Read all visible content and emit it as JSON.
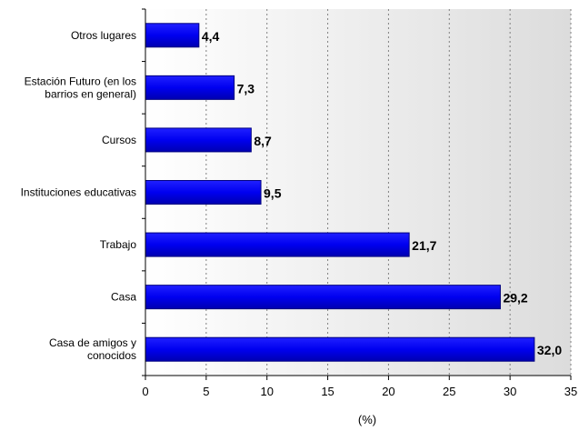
{
  "chart_data": {
    "type": "bar",
    "orientation": "horizontal",
    "categories": [
      "Otros lugares",
      "Estación Futuro (en los barrios en general)",
      "Cursos",
      "Instituciones educativas",
      "Trabajo",
      "Casa",
      "Casa de amigos y conocidos"
    ],
    "category_lines": [
      [
        "Otros lugares"
      ],
      [
        "Estación Futuro (en los",
        "barrios en general)"
      ],
      [
        "Cursos"
      ],
      [
        "Instituciones educativas"
      ],
      [
        "Trabajo"
      ],
      [
        "Casa"
      ],
      [
        "Casa de amigos y",
        "conocidos"
      ]
    ],
    "values": [
      4.4,
      7.3,
      8.7,
      9.5,
      21.7,
      29.2,
      32.0
    ],
    "value_labels": [
      "4,4",
      "7,3",
      "8,7",
      "9,5",
      "21,7",
      "29,2",
      "32,0"
    ],
    "xlabel": "(%)",
    "xlim": [
      0,
      35
    ],
    "xticks": [
      0,
      5,
      10,
      15,
      20,
      25,
      30,
      35
    ],
    "grid": "vertical-dotted",
    "colors": {
      "bar_fill": "#0000ff",
      "bar_stroke": "#000080",
      "plot_background": "#e9e9e9",
      "grid": "#808080"
    }
  }
}
